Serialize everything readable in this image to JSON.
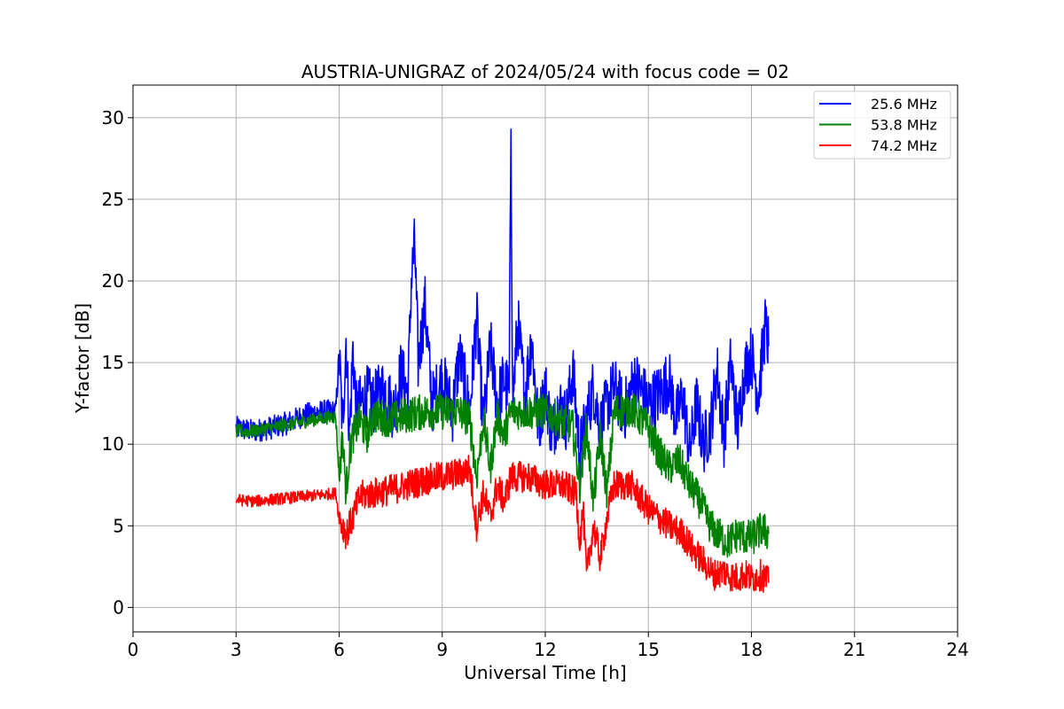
{
  "chart_data": {
    "type": "line",
    "title": "AUSTRIA-UNIGRAZ of 2024/05/24 with focus code = 02",
    "xlabel": "Universal Time [h]",
    "ylabel": "Y-factor [dB]",
    "xlim": [
      0,
      24
    ],
    "ylim": [
      -1.5,
      32
    ],
    "xticks": [
      0,
      3,
      6,
      9,
      12,
      15,
      18,
      21,
      24
    ],
    "yticks": [
      0,
      5,
      10,
      15,
      20,
      25,
      30
    ],
    "xtick_labels": [
      "0",
      "3",
      "6",
      "9",
      "12",
      "15",
      "18",
      "21",
      "24"
    ],
    "ytick_labels": [
      "0",
      "5",
      "10",
      "15",
      "20",
      "25",
      "30"
    ],
    "grid": true,
    "legend_position": "top-right",
    "series": [
      {
        "name": "25.6 MHz",
        "color": "#0000ff",
        "x": [
          3.0,
          3.5,
          4.0,
          4.5,
          5.0,
          5.5,
          5.9,
          6.0,
          6.1,
          6.2,
          6.3,
          6.4,
          6.5,
          6.8,
          7.0,
          7.3,
          7.6,
          7.8,
          8.0,
          8.1,
          8.2,
          8.3,
          8.5,
          8.7,
          9.0,
          9.3,
          9.5,
          9.8,
          10.0,
          10.2,
          10.4,
          10.6,
          10.8,
          10.95,
          11.0,
          11.05,
          11.2,
          11.4,
          11.6,
          11.8,
          12.0,
          12.2,
          12.4,
          12.6,
          12.8,
          13.0,
          13.2,
          13.4,
          13.6,
          13.8,
          14.0,
          14.3,
          14.6,
          15.0,
          15.3,
          15.6,
          15.8,
          16.0,
          16.2,
          16.4,
          16.6,
          16.8,
          17.0,
          17.2,
          17.4,
          17.6,
          17.8,
          18.0,
          18.2,
          18.4,
          18.5
        ],
        "values": [
          11.0,
          10.8,
          11.0,
          11.3,
          11.8,
          12.0,
          12.0,
          15.5,
          11.0,
          16.5,
          10.5,
          15.8,
          12.0,
          13.0,
          12.5,
          13.5,
          12.0,
          14.5,
          13.0,
          20.0,
          22.3,
          15.0,
          18.5,
          12.5,
          14.0,
          12.0,
          15.5,
          12.0,
          17.8,
          11.0,
          16.0,
          12.5,
          14.0,
          13.0,
          30.3,
          12.5,
          17.5,
          13.0,
          16.5,
          11.0,
          13.5,
          10.5,
          12.5,
          11.5,
          14.5,
          9.5,
          11.5,
          13.5,
          11.0,
          12.5,
          13.5,
          12.0,
          14.0,
          12.5,
          13.0,
          14.0,
          11.5,
          13.0,
          9.5,
          12.5,
          10.0,
          11.0,
          14.5,
          10.5,
          15.0,
          11.0,
          14.5,
          15.5,
          13.0,
          17.2,
          16.0
        ]
      },
      {
        "name": "53.8 MHz",
        "color": "#008000",
        "x": [
          3.0,
          3.5,
          4.0,
          4.5,
          5.0,
          5.5,
          5.9,
          6.0,
          6.1,
          6.2,
          6.3,
          6.4,
          6.6,
          6.8,
          7.0,
          7.5,
          8.0,
          8.5,
          9.0,
          9.5,
          9.8,
          10.0,
          10.2,
          10.4,
          10.6,
          10.8,
          11.0,
          11.5,
          12.0,
          12.4,
          12.8,
          13.0,
          13.2,
          13.4,
          13.6,
          13.8,
          14.0,
          14.5,
          15.0,
          15.3,
          15.6,
          15.9,
          16.2,
          16.5,
          16.8,
          17.0,
          17.3,
          17.6,
          18.0,
          18.3,
          18.5
        ],
        "values": [
          10.8,
          10.8,
          11.0,
          11.2,
          11.4,
          11.6,
          11.7,
          8.0,
          10.5,
          7.0,
          9.5,
          10.5,
          11.5,
          10.5,
          11.8,
          11.5,
          11.8,
          12.0,
          12.0,
          12.0,
          11.5,
          8.0,
          11.5,
          8.5,
          11.8,
          10.5,
          12.0,
          12.0,
          12.0,
          11.5,
          11.0,
          7.5,
          11.0,
          6.5,
          10.5,
          7.0,
          12.0,
          12.2,
          11.0,
          9.5,
          8.5,
          9.0,
          7.5,
          6.5,
          5.0,
          4.5,
          4.0,
          4.5,
          4.2,
          4.8,
          4.5
        ]
      },
      {
        "name": "74.2 MHz",
        "color": "#ff0000",
        "x": [
          3.0,
          3.5,
          4.0,
          4.5,
          5.0,
          5.5,
          5.9,
          6.0,
          6.2,
          6.4,
          6.6,
          7.0,
          7.5,
          8.0,
          8.5,
          9.0,
          9.5,
          9.8,
          10.0,
          10.2,
          10.4,
          10.6,
          10.8,
          11.0,
          11.5,
          12.0,
          12.5,
          12.9,
          13.0,
          13.1,
          13.2,
          13.4,
          13.6,
          13.8,
          14.0,
          14.5,
          15.0,
          15.3,
          15.6,
          16.0,
          16.3,
          16.6,
          16.9,
          17.2,
          17.5,
          17.8,
          18.0,
          18.3,
          18.5
        ],
        "values": [
          6.6,
          6.5,
          6.6,
          6.7,
          6.8,
          6.9,
          7.0,
          5.5,
          4.5,
          5.5,
          6.8,
          7.0,
          7.2,
          7.5,
          7.8,
          8.0,
          8.2,
          8.5,
          5.0,
          7.0,
          5.5,
          7.5,
          6.5,
          8.0,
          8.0,
          7.5,
          7.5,
          7.0,
          4.0,
          6.0,
          2.0,
          5.0,
          3.0,
          5.5,
          7.5,
          7.5,
          6.0,
          5.5,
          5.0,
          4.5,
          3.5,
          2.8,
          2.0,
          2.2,
          1.8,
          2.0,
          1.8,
          2.0,
          1.5
        ]
      }
    ]
  }
}
